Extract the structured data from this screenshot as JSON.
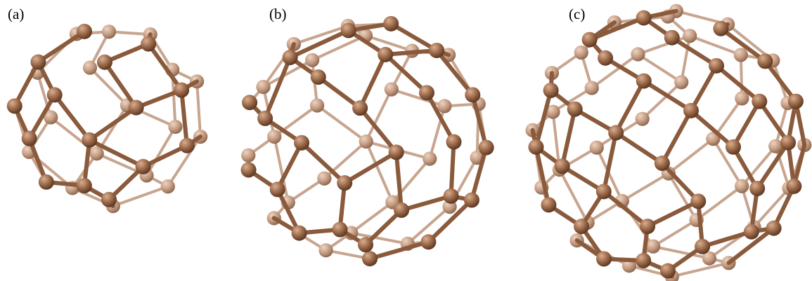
{
  "figure": {
    "panels": [
      {
        "label": "(a)"
      },
      {
        "label": "(b)"
      },
      {
        "label": "(c)"
      }
    ],
    "colors": {
      "atom": "#9c6a4a",
      "atom_highlight": "#d9ae92",
      "atom_back": "#c39a80",
      "bond_front": "#8a5a3c",
      "bond_back": "#c7a58f"
    }
  }
}
